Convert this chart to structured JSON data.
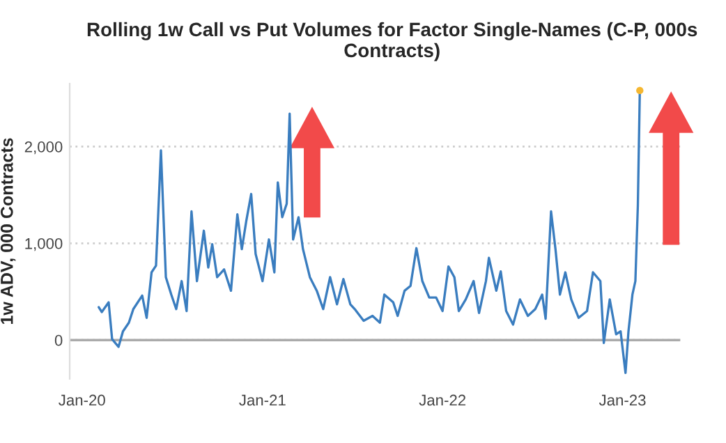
{
  "chart_data": {
    "type": "line",
    "title": "Rolling 1w Call vs Put Volumes for Factor Single-Names (C-P, 000s Contracts)",
    "ylabel": "1w ADV, 000 Contracts",
    "xlim": [
      "2019-12-07",
      "2023-04-28"
    ],
    "ylim": [
      -400,
      2650
    ],
    "xticks": [
      {
        "value": "2020-01-01",
        "label": "Jan-20"
      },
      {
        "value": "2021-01-01",
        "label": "Jan-21"
      },
      {
        "value": "2022-01-01",
        "label": "Jan-22"
      },
      {
        "value": "2023-01-01",
        "label": "Jan-23"
      }
    ],
    "yticks": [
      0,
      {
        "value": 1000,
        "label": "1,000"
      },
      {
        "value": 2000,
        "label": "2,000"
      }
    ],
    "grid": "y",
    "ref_lines": [
      {
        "axis": "y",
        "value": 0,
        "color": "#aaaaaa"
      }
    ],
    "series": [
      {
        "color": "#3a7dbf",
        "x": [
          "2020-02-04",
          "2020-02-10",
          "2020-02-24",
          "2020-03-02",
          "2020-03-15",
          "2020-03-24",
          "2020-04-05",
          "2020-04-14",
          "2020-05-02",
          "2020-05-11",
          "2020-05-21",
          "2020-05-30",
          "2020-06-09",
          "2020-06-19",
          "2020-06-30",
          "2020-07-10",
          "2020-07-21",
          "2020-07-31",
          "2020-08-10",
          "2020-08-21",
          "2020-09-04",
          "2020-09-13",
          "2020-09-21",
          "2020-10-01",
          "2020-10-15",
          "2020-10-29",
          "2020-11-11",
          "2020-11-20",
          "2020-11-29",
          "2020-12-09",
          "2020-12-18",
          "2021-01-01",
          "2021-01-14",
          "2021-01-25",
          "2021-02-01",
          "2021-02-10",
          "2021-02-19",
          "2021-02-25",
          "2021-03-04",
          "2021-03-15",
          "2021-03-24",
          "2021-04-07",
          "2021-04-21",
          "2021-05-04",
          "2021-05-18",
          "2021-06-01",
          "2021-06-14",
          "2021-06-28",
          "2021-07-07",
          "2021-07-25",
          "2021-08-12",
          "2021-08-27",
          "2021-09-05",
          "2021-09-23",
          "2021-10-02",
          "2021-10-16",
          "2021-10-28",
          "2021-11-09",
          "2021-11-21",
          "2021-12-05",
          "2021-12-19",
          "2022-01-01",
          "2022-01-13",
          "2022-01-25",
          "2022-02-03",
          "2022-02-17",
          "2022-03-05",
          "2022-03-16",
          "2022-03-30",
          "2022-04-05",
          "2022-04-20",
          "2022-04-29",
          "2022-05-10",
          "2022-05-24",
          "2022-06-07",
          "2022-06-23",
          "2022-07-08",
          "2022-07-22",
          "2022-07-29",
          "2022-08-09",
          "2022-08-18",
          "2022-08-27",
          "2022-09-07",
          "2022-09-19",
          "2022-10-04",
          "2022-10-21",
          "2022-11-02",
          "2022-11-17",
          "2022-11-24",
          "2022-12-06",
          "2022-12-19",
          "2022-12-28",
          "2023-01-07",
          "2023-01-13",
          "2023-01-21",
          "2023-01-27",
          "2023-02-01",
          "2023-02-05"
        ],
        "values": [
          340,
          290,
          390,
          10,
          -70,
          90,
          180,
          320,
          460,
          230,
          700,
          770,
          1960,
          650,
          470,
          320,
          610,
          300,
          1330,
          610,
          1130,
          750,
          990,
          650,
          730,
          510,
          1300,
          940,
          1230,
          1510,
          890,
          610,
          1040,
          700,
          1630,
          1270,
          1410,
          2340,
          1040,
          1270,
          940,
          650,
          510,
          320,
          650,
          370,
          630,
          370,
          320,
          200,
          250,
          180,
          470,
          390,
          250,
          510,
          560,
          950,
          610,
          440,
          440,
          300,
          760,
          650,
          300,
          420,
          610,
          280,
          610,
          850,
          510,
          710,
          300,
          160,
          420,
          250,
          320,
          470,
          220,
          1330,
          940,
          470,
          700,
          420,
          230,
          300,
          700,
          610,
          -30,
          420,
          60,
          90,
          -340,
          90,
          470,
          610,
          1390,
          2580
        ]
      },
      {
        "type": "scatter",
        "color": "#f5b731",
        "x": [
          "2023-02-05"
        ],
        "values": [
          2580
        ]
      }
    ]
  }
}
